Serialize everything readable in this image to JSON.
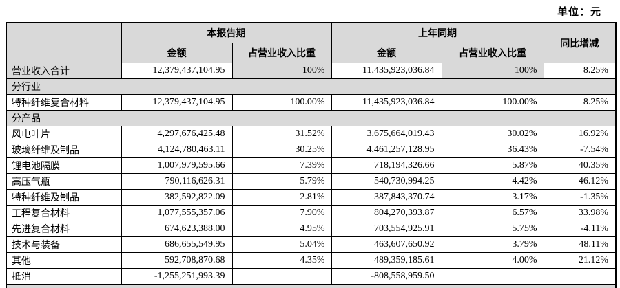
{
  "unit_label": "单位：元",
  "table": {
    "headers": {
      "period_current": "本报告期",
      "period_prior": "上年同期",
      "yoy": "同比增减",
      "amount": "金额",
      "pct_of_revenue": "占营业收入比重"
    },
    "colors": {
      "shaded_bg": "#d9d9d9",
      "border": "#000000"
    },
    "rows": [
      {
        "type": "total",
        "label": "营业收入合计",
        "cells": [
          "12,379,437,104.95",
          "100%",
          "11,435,923,036.84",
          "100%",
          "8.25%"
        ]
      },
      {
        "type": "section",
        "label": "分行业"
      },
      {
        "type": "data",
        "label": "特种纤维复合材料",
        "cells": [
          "12,379,437,104.95",
          "100.00%",
          "11,435,923,036.84",
          "100.00%",
          "8.25%"
        ]
      },
      {
        "type": "section",
        "label": "分产品"
      },
      {
        "type": "data",
        "label": "风电叶片",
        "cells": [
          "4,297,676,425.48",
          "31.52%",
          "3,675,664,019.43",
          "30.02%",
          "16.92%"
        ]
      },
      {
        "type": "data",
        "label": "玻璃纤维及制品",
        "cells": [
          "4,124,780,463.11",
          "30.25%",
          "4,461,257,128.95",
          "36.43%",
          "-7.54%"
        ]
      },
      {
        "type": "data",
        "label": "锂电池隔膜",
        "cells": [
          "1,007,979,595.66",
          "7.39%",
          "718,194,326.66",
          "5.87%",
          "40.35%"
        ]
      },
      {
        "type": "data",
        "label": "高压气瓶",
        "cells": [
          "790,116,626.31",
          "5.79%",
          "540,730,994.25",
          "4.42%",
          "46.12%"
        ]
      },
      {
        "type": "data",
        "label": "特种纤维及制品",
        "cells": [
          "382,592,822.09",
          "2.81%",
          "387,843,370.74",
          "3.17%",
          "-1.35%"
        ]
      },
      {
        "type": "data",
        "label": "工程复合材料",
        "cells": [
          "1,077,555,357.06",
          "7.90%",
          "804,270,393.87",
          "6.57%",
          "33.98%"
        ]
      },
      {
        "type": "data",
        "label": "先进复合材料",
        "cells": [
          "674,623,388.00",
          "4.95%",
          "703,554,925.91",
          "5.75%",
          "-4.11%"
        ]
      },
      {
        "type": "data",
        "label": "技术与装备",
        "cells": [
          "686,655,549.95",
          "5.04%",
          "463,607,650.92",
          "3.79%",
          "48.11%"
        ]
      },
      {
        "type": "data",
        "label": "其他",
        "cells": [
          "592,708,870.68",
          "4.35%",
          "489,359,185.61",
          "4.00%",
          "21.12%"
        ]
      },
      {
        "type": "data",
        "label": "抵消",
        "cells": [
          "-1,255,251,993.39",
          "",
          "-808,558,959.50",
          "",
          ""
        ]
      },
      {
        "type": "section",
        "label": ""
      }
    ]
  }
}
